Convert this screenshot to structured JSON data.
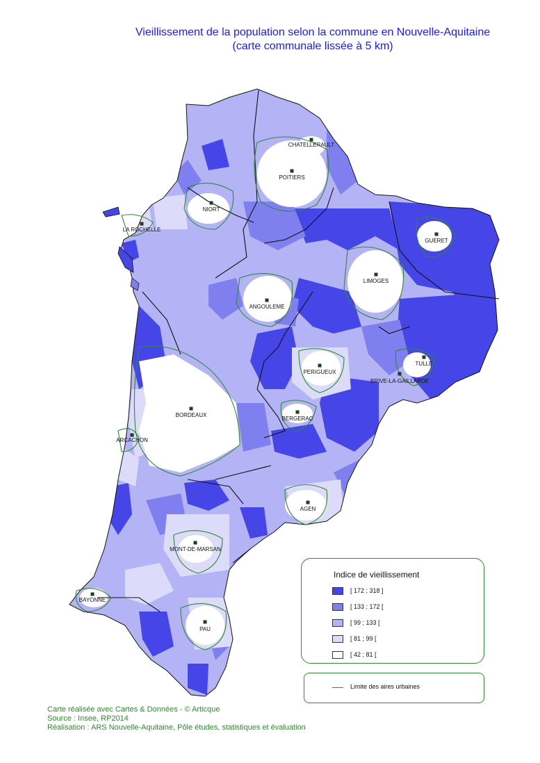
{
  "title": {
    "line1": "Vieillissement de la population selon la commune en Nouvelle-Aquitaine",
    "line2": "(carte communale lissée à 5 km)"
  },
  "colors": {
    "class1": "#4545e8",
    "class2": "#7f7ff0",
    "class3": "#b3b3f6",
    "class4": "#dcdcfa",
    "class5": "#ffffff",
    "urban_border": "#2e8b2e",
    "title": "#1a1aff"
  },
  "cities": [
    {
      "name": "CHATELLERAULT"
    },
    {
      "name": "POITIERS"
    },
    {
      "name": "NIORT"
    },
    {
      "name": "LA ROCHELLE"
    },
    {
      "name": "GUERET"
    },
    {
      "name": "LIMOGES"
    },
    {
      "name": "ANGOULEME"
    },
    {
      "name": "TULLE"
    },
    {
      "name": "PERIGUEUX"
    },
    {
      "name": "BRIVE-LA-GAILLARDE"
    },
    {
      "name": "BORDEAUX"
    },
    {
      "name": "BERGERAC"
    },
    {
      "name": "ARCACHON"
    },
    {
      "name": "AGEN"
    },
    {
      "name": "MONT-DE-MARSAN"
    },
    {
      "name": "BAYONNE"
    },
    {
      "name": "PAU"
    }
  ],
  "legend": {
    "title": "Indice de vieillissement",
    "classes": [
      {
        "label": "[ 172 ; 318 ]"
      },
      {
        "label": "[ 133 ; 172 ["
      },
      {
        "label": "[ 99 ; 133 ["
      },
      {
        "label": "[ 81 ; 99 ["
      },
      {
        "label": "[ 42 ; 81 ["
      }
    ]
  },
  "line_legend": {
    "label": "Limite des aires urbaines"
  },
  "credits": {
    "line1": "Carte réalisée avec Cartes & Données - © Articque",
    "line2": "Source : Insee, RP2014",
    "line3": "Réalisation : ARS Nouvelle-Aquitaine, Pôle études, statistiques et évaluation"
  }
}
